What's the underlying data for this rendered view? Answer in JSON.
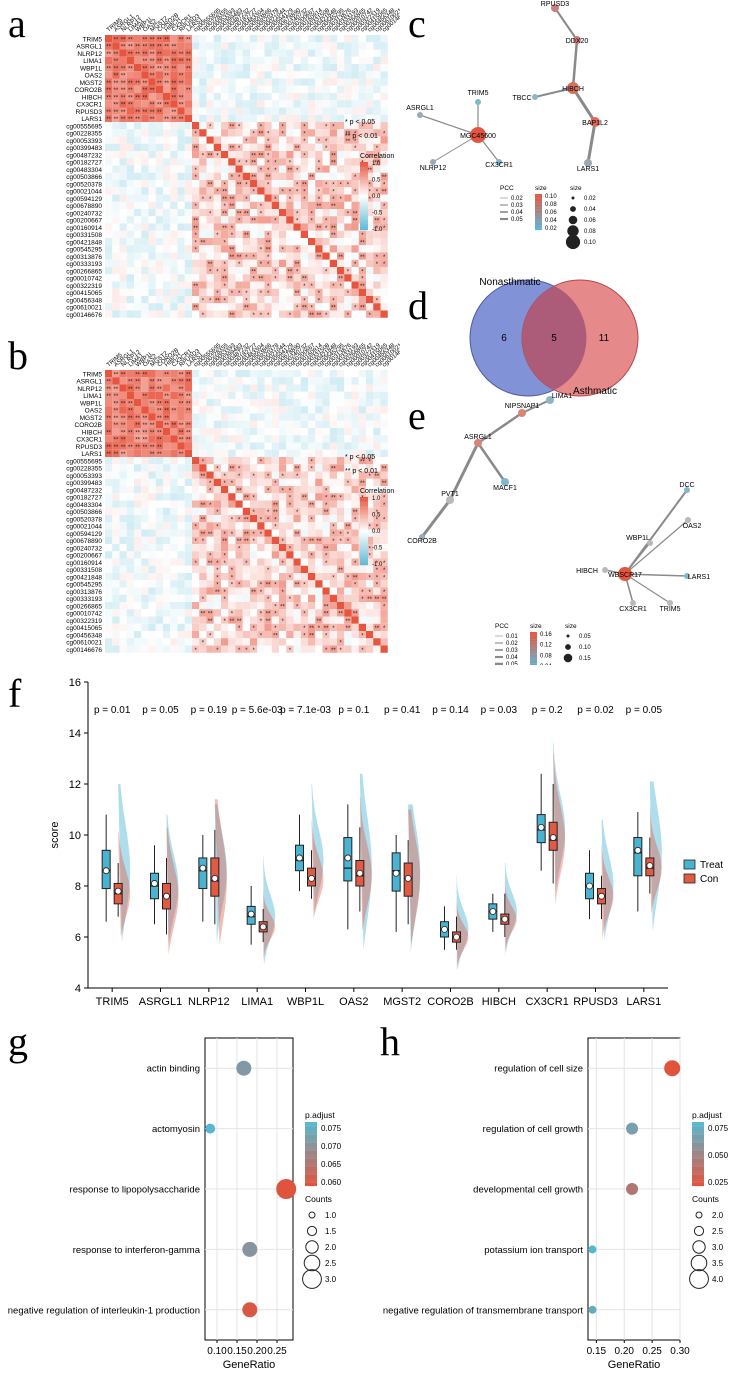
{
  "panels": {
    "a": "a",
    "b": "b",
    "c": "c",
    "d": "d",
    "e": "e",
    "f": "f",
    "g": "g",
    "h": "h"
  },
  "heatmap": {
    "genes": [
      "TRIM5",
      "ASRGL1",
      "NLRP12",
      "LIMA1",
      "WBP1L",
      "OAS2",
      "MGST2",
      "CORO2B",
      "HIBCH",
      "CX3CR1",
      "RPUSD3",
      "LARS1"
    ],
    "cpgs": [
      "cg00555695",
      "cg00228355",
      "cg00053393",
      "cg00399483",
      "cg00487232",
      "cg00182727",
      "cg00483304",
      "cg00503866",
      "cg00520378",
      "cg00021044",
      "cg00594129",
      "cg00678890",
      "cg00240732",
      "cg00200667",
      "cg00160914",
      "cg00331508",
      "cg00421848",
      "cg00545295",
      "cg00313876",
      "cg00333193",
      "cg00266865",
      "cg00010742",
      "cg00322319",
      "cg00415065",
      "cg00456348",
      "cg00610021",
      "cg00146676"
    ],
    "sig1": "* p < 0.05",
    "sig2": "** p < 0.01",
    "legend_title": "Correlation",
    "legend_ticks": [
      "1.0",
      "0.5",
      "0.0",
      "-0.5",
      "-1.0"
    ],
    "colors": {
      "pos": "#e8553f",
      "neg": "#5bbcd6"
    }
  },
  "network_c": {
    "nodes": [
      "RPUSD3",
      "DDX20",
      "HIBCH",
      "TBCC",
      "BAP1L2",
      "LARS1",
      "TRIM5",
      "ASRGL1",
      "MGC45600",
      "NLRP12",
      "CX3CR1"
    ],
    "legend_pcc_title": "PCC",
    "legend_pcc": [
      "0.02",
      "0.03",
      "0.04",
      "0.05"
    ],
    "legend_size_title": "size",
    "legend_color": [
      "0.10",
      "0.08",
      "0.06",
      "0.04",
      "0.02"
    ],
    "legend_size": [
      "0.02",
      "0.04",
      "0.06",
      "0.08",
      "0.10"
    ]
  },
  "venn": {
    "left_label": "Nonasthmatic",
    "right_label": "Asthmatic",
    "left_only": "6",
    "both": "5",
    "right_only": "11",
    "left_color": "#6b7fcf",
    "right_color": "#e06b6e"
  },
  "network_e": {
    "nodes": [
      "LIMA1",
      "NIPSNAP1",
      "ASRGL1",
      "MACF1",
      "PVT1",
      "CORO2B",
      "DCC",
      "WBP1L",
      "OAS2",
      "HIBCH",
      "WBSCR17",
      "LARS1",
      "CX3CR1",
      "TRIM5"
    ],
    "legend_pcc_title": "PCC",
    "legend_pcc": [
      "0.01",
      "0.02",
      "0.03",
      "0.04",
      "0.05"
    ],
    "legend_size_title": "size",
    "legend_size": [
      "0.05",
      "0.10",
      "0.15"
    ],
    "legend_color": [
      "0.16",
      "0.12",
      "0.08",
      "0.04"
    ]
  },
  "chart_data": [
    {
      "type": "violin-box",
      "genes": [
        "TRIM5",
        "ASRGL1",
        "NLRP12",
        "LIMA1",
        "WBP1L",
        "OAS2",
        "MGST2",
        "CORO2B",
        "HIBCH",
        "CX3CR1",
        "RPUSD3",
        "LARS1"
      ],
      "pvalues": [
        "p = 0.01",
        "p = 0.05",
        "p = 0.19",
        "p = 5.6e-03",
        "p = 7.1e-03",
        "p = 0.1",
        "p = 0.41",
        "p = 0.14",
        "p = 0.03",
        "p = 0.2",
        "p = 0.02",
        "p = 0.05"
      ],
      "ylabel": "score",
      "ylim": [
        4,
        16
      ],
      "yticks": [
        "4",
        "6",
        "8",
        "10",
        "12",
        "14",
        "16"
      ],
      "series": [
        {
          "name": "Treat",
          "color": "#4bb3d2",
          "median": [
            8.6,
            8.0,
            8.6,
            6.8,
            9.0,
            8.7,
            8.6,
            6.3,
            7.0,
            10.2,
            8.0,
            9.3
          ],
          "q1": [
            7.9,
            7.5,
            7.9,
            6.5,
            8.6,
            8.2,
            7.8,
            6.0,
            6.7,
            9.7,
            7.5,
            8.4
          ],
          "q3": [
            9.4,
            8.5,
            9.1,
            7.2,
            9.6,
            9.9,
            9.3,
            6.6,
            7.3,
            10.8,
            8.5,
            9.9
          ],
          "min": [
            6.6,
            6.5,
            6.6,
            5.7,
            7.8,
            6.3,
            6.2,
            5.5,
            6.2,
            8.6,
            6.7,
            7.0
          ],
          "max": [
            10.8,
            9.6,
            10.0,
            8.0,
            10.8,
            11.2,
            10.0,
            7.2,
            7.7,
            12.4,
            9.4,
            10.9
          ],
          "mean": [
            8.6,
            8.1,
            8.7,
            6.9,
            9.1,
            9.1,
            8.5,
            6.3,
            7.0,
            10.3,
            8.0,
            9.4
          ]
        },
        {
          "name": "Con",
          "color": "#e15a43",
          "median": [
            7.7,
            7.6,
            8.2,
            6.4,
            8.3,
            8.4,
            8.3,
            6.0,
            6.7,
            9.8,
            7.6,
            8.7
          ],
          "q1": [
            7.3,
            7.1,
            7.6,
            6.2,
            8.0,
            8.0,
            7.6,
            5.8,
            6.5,
            9.4,
            7.3,
            8.4
          ],
          "q3": [
            8.1,
            8.1,
            9.1,
            6.6,
            8.7,
            9.0,
            8.9,
            6.2,
            6.9,
            10.5,
            7.9,
            9.1
          ],
          "min": [
            6.8,
            6.1,
            6.5,
            5.8,
            7.5,
            7.0,
            6.5,
            5.5,
            6.0,
            8.1,
            6.7,
            7.7
          ],
          "max": [
            8.9,
            9.1,
            10.2,
            7.1,
            9.4,
            10.3,
            9.8,
            6.8,
            7.7,
            12.0,
            8.4,
            9.9
          ],
          "mean": [
            7.8,
            7.6,
            8.3,
            6.4,
            8.3,
            8.5,
            8.3,
            6.0,
            6.7,
            9.9,
            7.6,
            8.8
          ]
        }
      ],
      "legend": [
        "Treat",
        "Con"
      ]
    },
    {
      "type": "scatter",
      "terms": [
        "actin binding",
        "actomyosin",
        "response to lipopolysaccharide",
        "response to interferon-gamma",
        "negative regulation of interleukin-1 production"
      ],
      "x": [
        0.167,
        0.083,
        0.273,
        0.182,
        0.182
      ],
      "counts": [
        2,
        1,
        3,
        2,
        2
      ],
      "p_adjust": [
        0.072,
        0.078,
        0.058,
        0.071,
        0.059
      ],
      "xlabel": "GeneRatio",
      "xlim": [
        0.07,
        0.29
      ],
      "xticks": [
        "0.10",
        "0.15",
        "0.20",
        "0.25"
      ],
      "color_title": "p.adjust",
      "color_ticks": [
        "0.075",
        "0.070",
        "0.065",
        "0.060"
      ],
      "size_title": "Counts",
      "size_ticks": [
        "1.0",
        "1.5",
        "2.0",
        "2.5",
        "3.0"
      ]
    },
    {
      "type": "scatter",
      "terms": [
        "regulation of cell size",
        "regulation of cell growth",
        "developmental cell growth",
        "potassium ion transport",
        "negative regulation of transmembrane transport"
      ],
      "x": [
        0.286,
        0.214,
        0.214,
        0.143,
        0.143
      ],
      "counts": [
        4,
        3,
        3,
        2,
        2
      ],
      "p_adjust": [
        0.005,
        0.07,
        0.035,
        0.09,
        0.08
      ],
      "xlabel": "GeneRatio",
      "xlim": [
        0.135,
        0.3
      ],
      "xticks": [
        "0.15",
        "0.20",
        "0.25",
        "0.30"
      ],
      "color_title": "p.adjust",
      "color_ticks": [
        "0.075",
        "0.050",
        "0.025"
      ],
      "size_title": "Counts",
      "size_ticks": [
        "2.0",
        "2.5",
        "3.0",
        "3.5",
        "4.0"
      ]
    }
  ]
}
